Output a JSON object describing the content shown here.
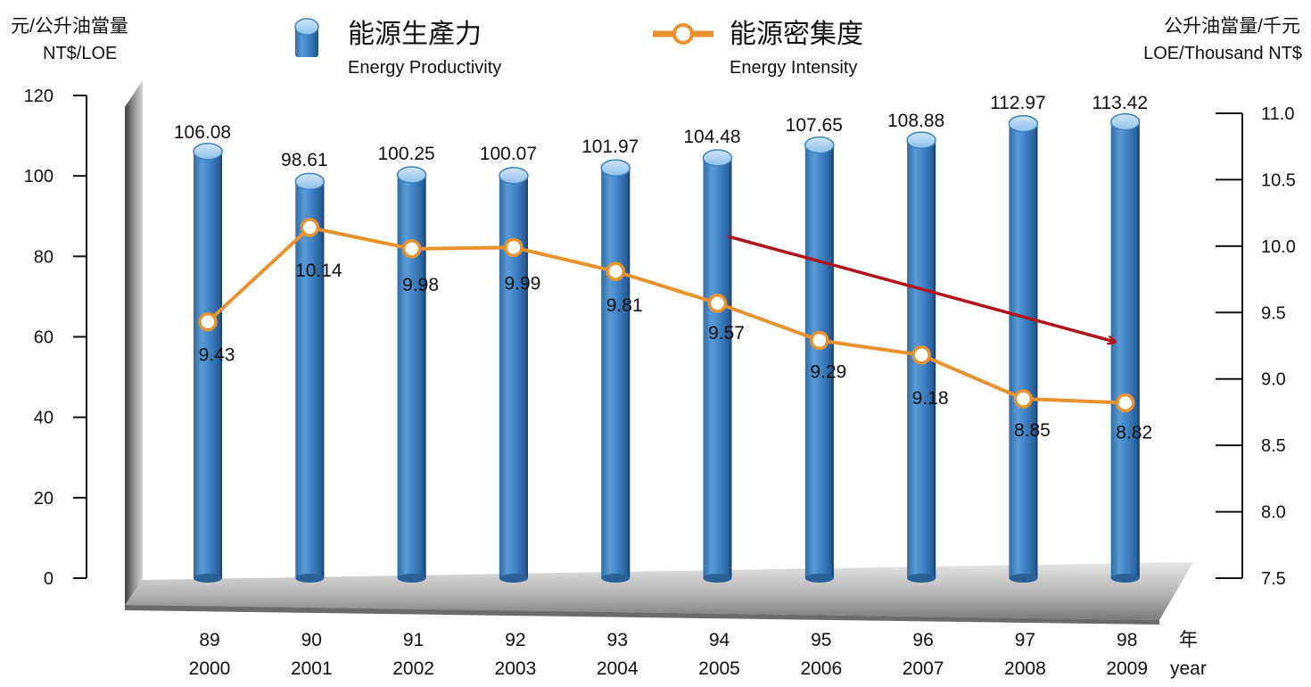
{
  "chart_data": {
    "type": "bar",
    "left_axis": {
      "title_line1": "元/公升油當量",
      "title_line2": "NT$/LOE",
      "ylim": [
        0,
        120
      ],
      "ticks": [
        "0",
        "20",
        "40",
        "60",
        "80",
        "100",
        "120"
      ]
    },
    "right_axis": {
      "title_line1": "公升油當量/千元",
      "title_line2": "LOE/Thousand NT$",
      "ylim": [
        7.5,
        11.0
      ],
      "ticks": [
        "7.5",
        "8.0",
        "8.5",
        "9.0",
        "9.5",
        "10.0",
        "10.5",
        "11.0"
      ]
    },
    "categories_roc": [
      "89",
      "90",
      "91",
      "92",
      "93",
      "94",
      "95",
      "96",
      "97",
      "98"
    ],
    "categories_ad": [
      "2000",
      "2001",
      "2002",
      "2003",
      "2004",
      "2005",
      "2006",
      "2007",
      "2008",
      "2009"
    ],
    "x_unit_zh": "年",
    "x_unit_en": "year",
    "legend": {
      "bar_zh": "能源生產力",
      "bar_en": "Energy Productivity",
      "line_zh": "能源密集度",
      "line_en": "Energy Intensity"
    },
    "series": [
      {
        "type": "bar",
        "axis": "left",
        "values": [
          106.08,
          98.61,
          100.25,
          100.07,
          101.97,
          104.48,
          107.65,
          108.88,
          112.97,
          113.42
        ],
        "labels": [
          "106.08",
          "98.61",
          "100.25",
          "100.07",
          "101.97",
          "104.48",
          "107.65",
          "108.88",
          "112.97",
          "113.42"
        ],
        "color": "#3f7fbf"
      },
      {
        "type": "line",
        "axis": "right",
        "values": [
          9.43,
          10.14,
          9.98,
          9.99,
          9.81,
          9.57,
          9.29,
          9.18,
          8.85,
          8.82
        ],
        "labels": [
          "9.43",
          "10.14",
          "9.98",
          "9.99",
          "9.81",
          "9.57",
          "9.29",
          "9.18",
          "8.85",
          "8.82"
        ],
        "color": "#e8922e"
      }
    ],
    "trend_arrow": {
      "from_category_index": 5,
      "to_category_index": 9,
      "color": "#b3141b"
    }
  }
}
